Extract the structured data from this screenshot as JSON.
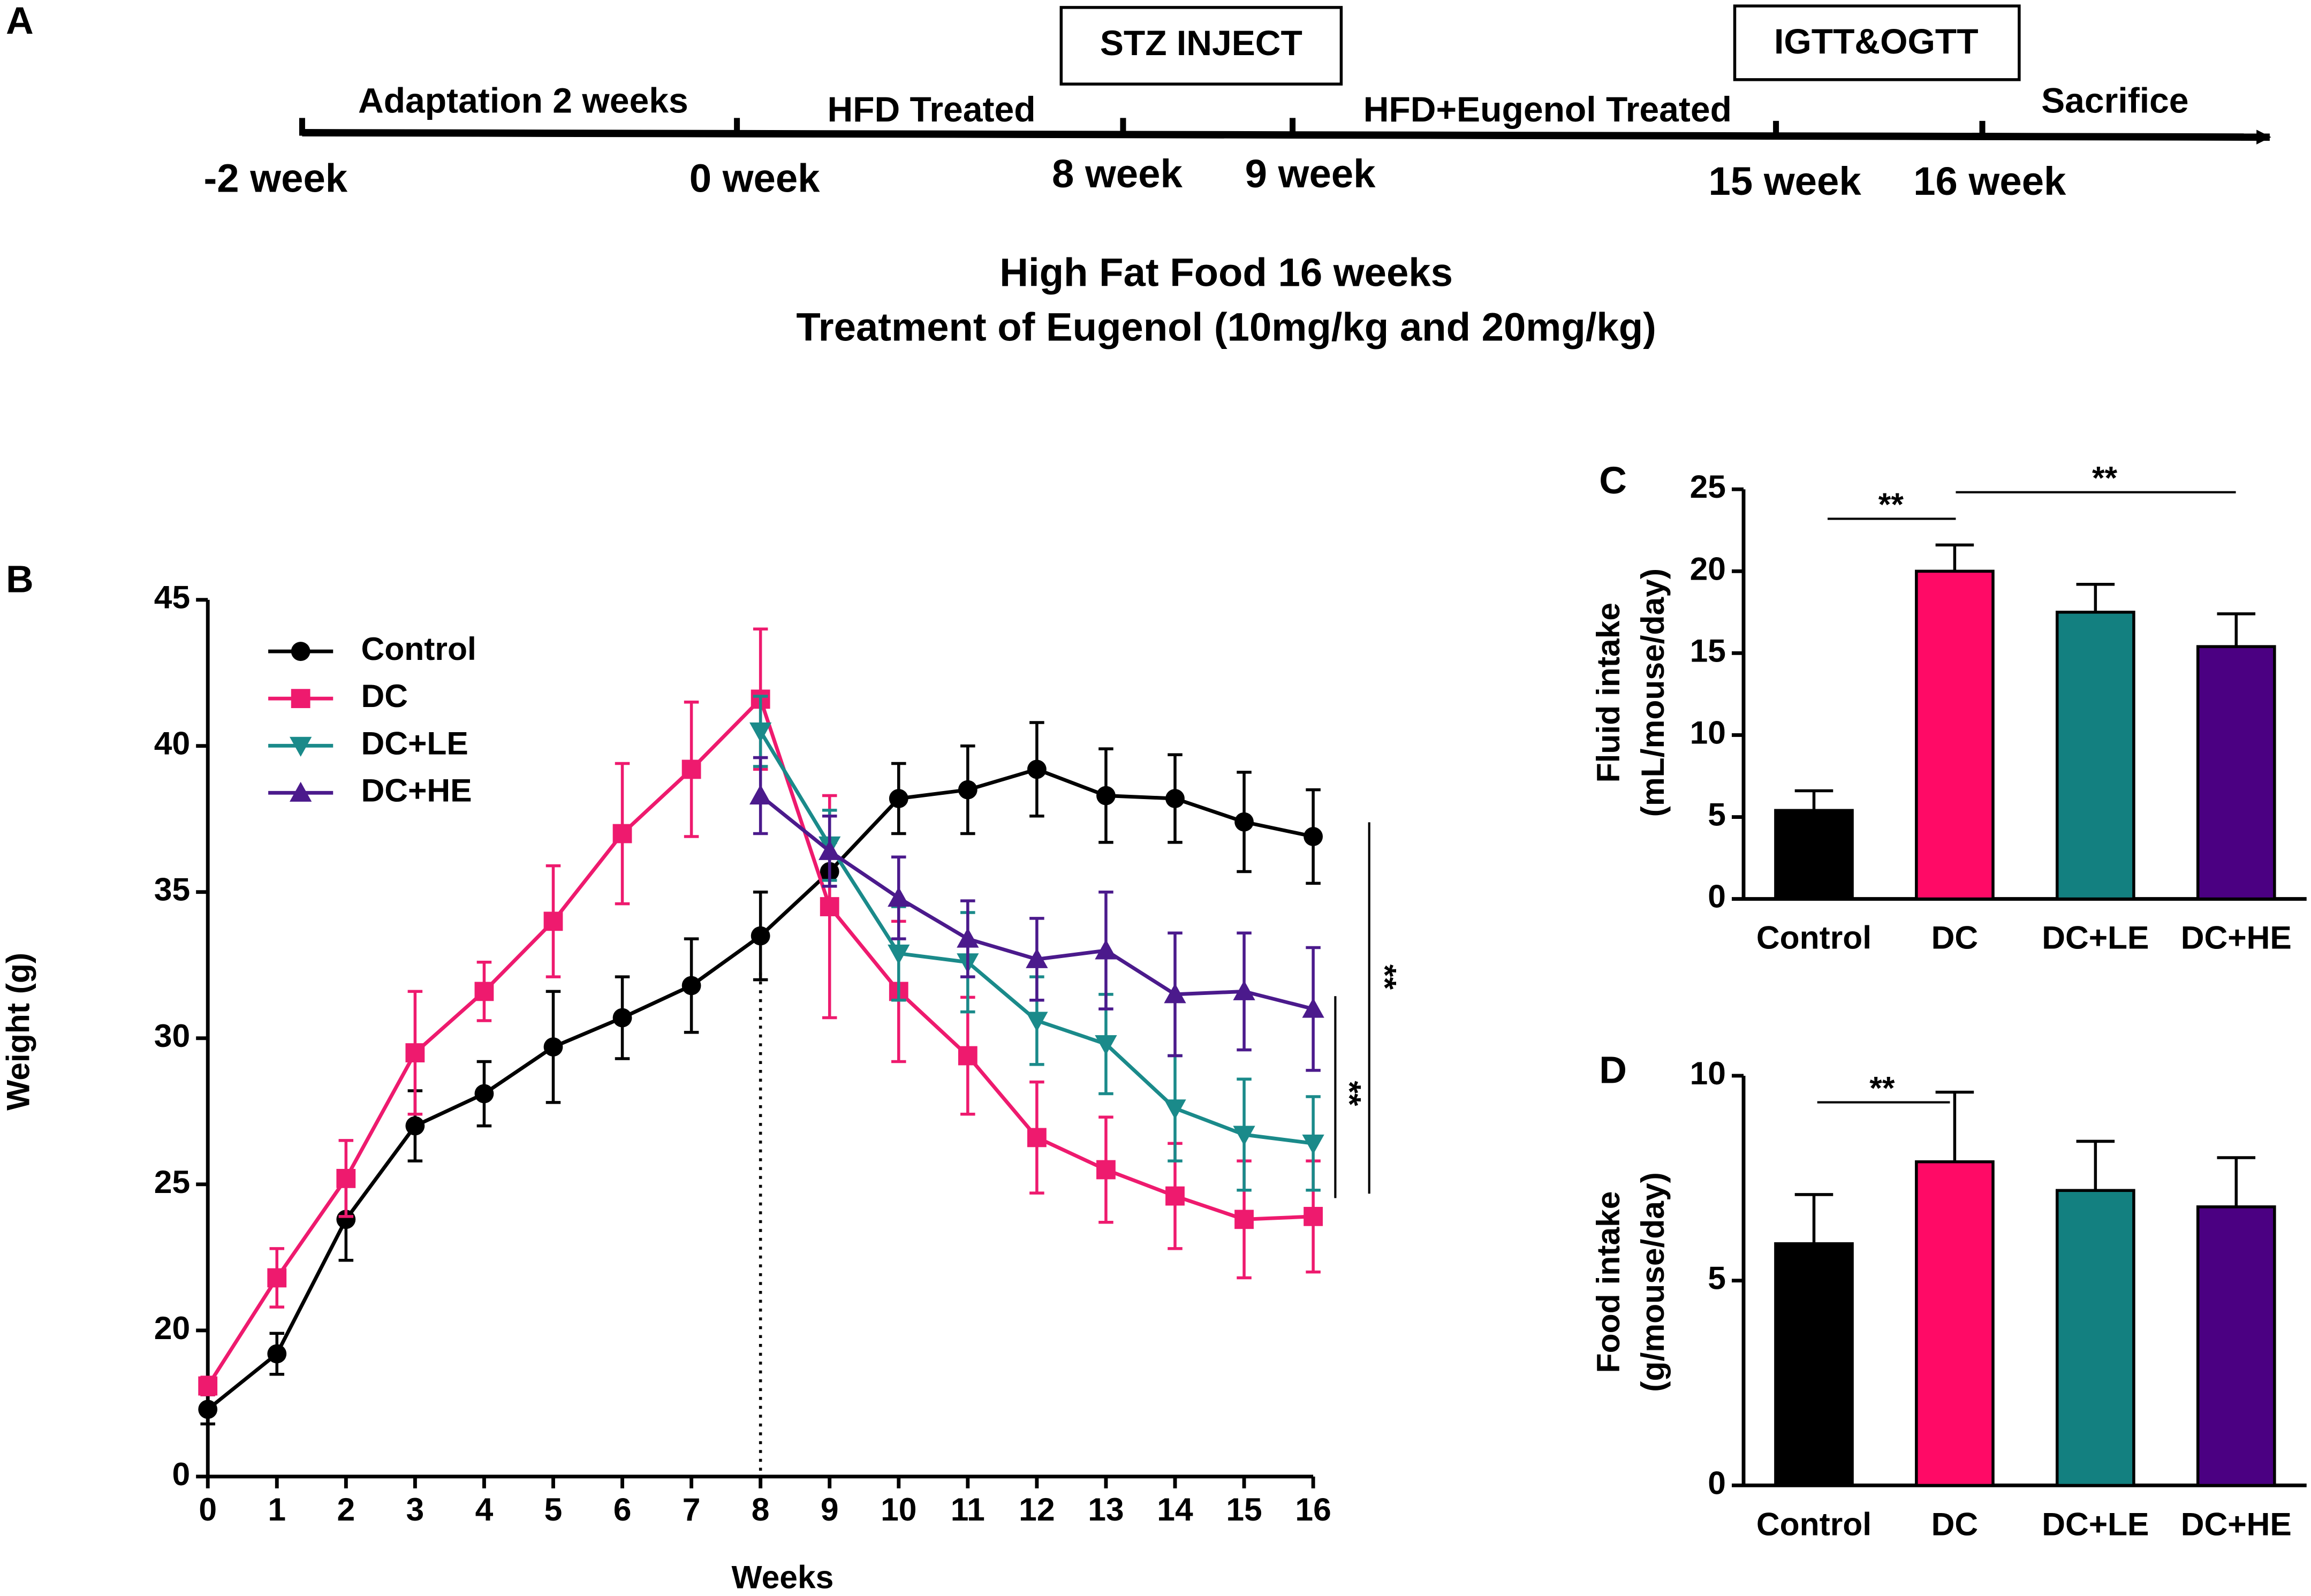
{
  "panel_labels": [
    "A",
    "B",
    "C",
    "D"
  ],
  "timeline": {
    "phases": [
      "Adaptation 2 weeks",
      "HFD Treated",
      "HFD+Eugenol Treated",
      "Sacrifice"
    ],
    "boxes": [
      "STZ INJECT",
      "IGTT&OGTT"
    ],
    "weeks": [
      "-2 week",
      "0 week",
      "8 week",
      "9 week",
      "15 week",
      "16 week"
    ],
    "caption": [
      "High Fat Food 16 weeks",
      "Treatment of Eugenol (10mg/kg and 20mg/kg)"
    ]
  },
  "chart_data": [
    {
      "type": "line",
      "xlabel": "Weeks",
      "ylabel": "Weight (g)",
      "x": [
        0,
        1,
        2,
        3,
        4,
        5,
        6,
        7,
        8,
        9,
        10,
        11,
        12,
        13,
        14,
        15,
        16
      ],
      "xlim": [
        0,
        16
      ],
      "xticks": [
        0,
        1,
        2,
        3,
        4,
        5,
        6,
        7,
        8,
        9,
        10,
        11,
        12,
        13,
        14,
        15,
        16
      ],
      "ylim": [
        15,
        45
      ],
      "yticks": [
        0,
        20,
        25,
        30,
        35,
        40,
        45
      ],
      "y_axis_break": true,
      "legend": "upper left",
      "annotations": [
        "**",
        "**"
      ],
      "series": [
        {
          "name": "Control",
          "color": "#000000",
          "marker": "circle",
          "values": [
            17.3,
            19.2,
            23.8,
            27.0,
            28.1,
            29.7,
            30.7,
            31.8,
            33.5,
            35.7,
            38.2,
            38.5,
            39.2,
            38.3,
            38.2,
            37.4,
            36.9
          ],
          "errors": [
            0.5,
            0.7,
            1.4,
            1.2,
            1.1,
            1.9,
            1.4,
            1.6,
            1.5,
            1.0,
            1.2,
            1.5,
            1.6,
            1.6,
            1.5,
            1.7,
            1.6
          ]
        },
        {
          "name": "DC",
          "color": "#ee1a6e",
          "marker": "square",
          "values": [
            18.1,
            21.8,
            25.2,
            29.5,
            31.6,
            34.0,
            37.0,
            39.2,
            41.6,
            34.5,
            31.6,
            29.4,
            26.6,
            25.5,
            24.6,
            23.8,
            23.9
          ],
          "errors": [
            0.3,
            1.0,
            1.3,
            2.1,
            1.0,
            1.9,
            2.4,
            2.3,
            2.4,
            3.8,
            2.4,
            2.0,
            1.9,
            1.8,
            1.8,
            2.0,
            1.9
          ]
        },
        {
          "name": "DC+LE",
          "color": "#1a8a8a",
          "marker": "triangle-down",
          "values": [
            null,
            null,
            null,
            null,
            null,
            null,
            null,
            null,
            40.5,
            36.6,
            32.9,
            32.6,
            30.6,
            29.8,
            27.6,
            26.7,
            26.4
          ],
          "errors": [
            null,
            null,
            null,
            null,
            null,
            null,
            null,
            null,
            1.2,
            1.2,
            1.6,
            1.7,
            1.5,
            1.7,
            1.8,
            1.9,
            1.6
          ]
        },
        {
          "name": "DC+HE",
          "color": "#4b1a8c",
          "marker": "triangle-up",
          "values": [
            null,
            null,
            null,
            null,
            null,
            null,
            null,
            null,
            38.3,
            36.4,
            34.8,
            33.4,
            32.7,
            33.0,
            31.5,
            31.6,
            31.0
          ],
          "errors": [
            null,
            null,
            null,
            null,
            null,
            null,
            null,
            null,
            1.3,
            1.2,
            1.4,
            1.3,
            1.4,
            2.0,
            2.1,
            2.0,
            2.1
          ]
        }
      ]
    },
    {
      "type": "bar",
      "ylabel": [
        "Fluid intake",
        "(mL/mouse/day)"
      ],
      "categories": [
        "Control",
        "DC",
        "DC+LE",
        "DC+HE"
      ],
      "values": [
        5.4,
        20.0,
        17.5,
        15.4
      ],
      "errors": [
        1.2,
        1.6,
        1.7,
        2.0
      ],
      "colors": [
        "#000000",
        "#ff0a66",
        "#138080",
        "#4b0082"
      ],
      "ylim": [
        0,
        25
      ],
      "yticks": [
        0,
        5,
        10,
        15,
        20,
        25
      ],
      "annotations": [
        "**",
        "**"
      ]
    },
    {
      "type": "bar",
      "ylabel": [
        "Food intake",
        "(g/mouse/day)"
      ],
      "categories": [
        "Control",
        "DC",
        "DC+LE",
        "DC+HE"
      ],
      "values": [
        5.9,
        7.9,
        7.2,
        6.8
      ],
      "errors": [
        1.2,
        1.7,
        1.2,
        1.2
      ],
      "colors": [
        "#000000",
        "#ff0a66",
        "#138080",
        "#4b0082"
      ],
      "ylim": [
        0,
        10
      ],
      "yticks": [
        0,
        5,
        10
      ],
      "annotations": [
        "**"
      ]
    }
  ]
}
